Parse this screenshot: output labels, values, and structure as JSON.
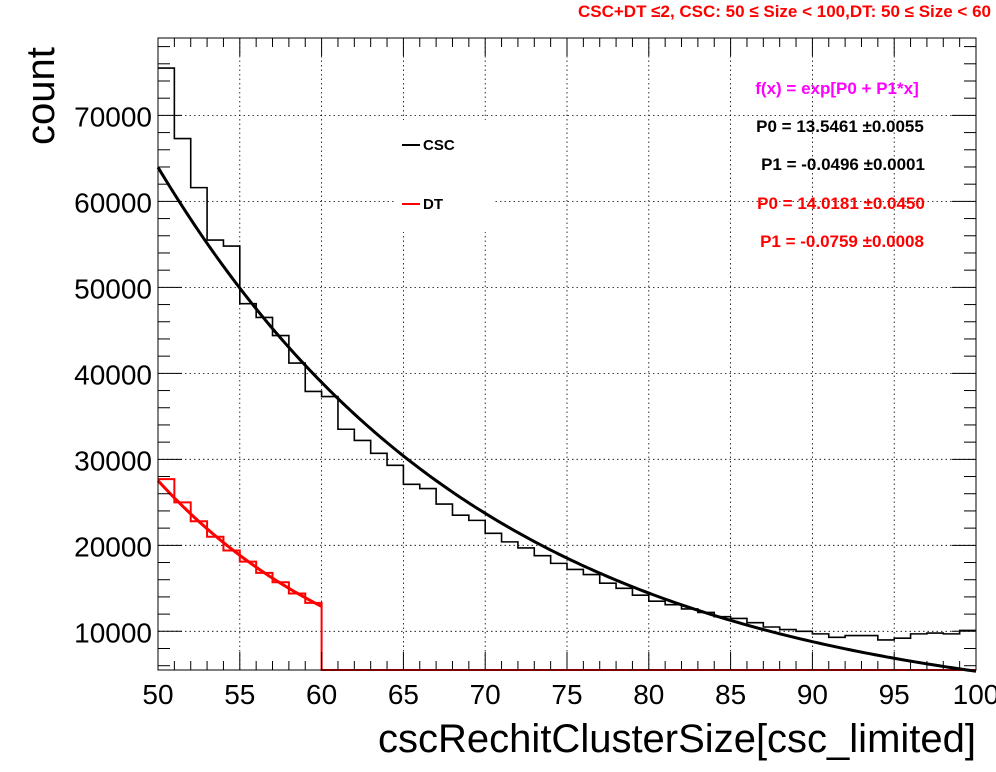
{
  "chart_data": {
    "type": "line",
    "title": "CSC+DT ≤2, CSC: 50  ≤ Size < 100,DT: 50   ≤ Size < 60",
    "xlabel": "cscRechitClusterSize[csc_limited]",
    "ylabel": "count",
    "xlim": [
      50,
      100
    ],
    "ylim": [
      5500,
      79000
    ],
    "x_ticks": [
      50,
      55,
      60,
      65,
      70,
      75,
      80,
      85,
      90,
      95,
      100
    ],
    "y_ticks": [
      10000,
      20000,
      30000,
      40000,
      50000,
      60000,
      70000
    ],
    "grid": true,
    "legend_position": "top-center",
    "colors": {
      "csc": "#000000",
      "dt": "#ff0000",
      "formula": "#ff00ff"
    },
    "series": [
      {
        "name": "CSC",
        "kind": "histogram",
        "bin_width": 1,
        "bin_edges_start": 50,
        "values": [
          75500,
          67300,
          61600,
          55500,
          54800,
          48100,
          46500,
          44400,
          41200,
          37900,
          37300,
          33500,
          32200,
          30700,
          29300,
          27100,
          26600,
          24800,
          23500,
          22900,
          21400,
          20400,
          19700,
          18800,
          17900,
          17200,
          16600,
          15600,
          15000,
          14200,
          13500,
          13100,
          12600,
          12200,
          11700,
          11500,
          11000,
          10500,
          10200,
          10000,
          9700,
          9300,
          9500,
          9500,
          9000,
          9200,
          9700,
          9800,
          9700,
          10100
        ]
      },
      {
        "name": "DT",
        "kind": "histogram",
        "bin_width": 1,
        "bin_edges_start": 50,
        "values": [
          27700,
          25000,
          22800,
          21000,
          19400,
          18100,
          16800,
          15700,
          14400,
          13300
        ]
      }
    ],
    "fits": [
      {
        "series": "CSC",
        "formula": "exp[P0 + P1*x]",
        "P0": 13.5461,
        "P1": -0.0496,
        "x_range": [
          50,
          100
        ],
        "color": "#000000"
      },
      {
        "series": "DT",
        "formula": "exp[P0 + P1*x]",
        "P0": 14.0181,
        "P1": -0.0759,
        "x_range": [
          50,
          60
        ],
        "color": "#ff0000"
      }
    ],
    "legend": [
      {
        "label": "CSC",
        "color": "#000000"
      },
      {
        "label": "DT",
        "color": "#ff0000"
      }
    ],
    "annotations": {
      "formula": "f(x) = exp[P0 + P1*x]",
      "csc_p0": "P0 = 13.5461 ±0.0055",
      "csc_p1": "P1 = -0.0496 ±0.0001",
      "dt_p0": "P0 = 14.0181 ±0.0450",
      "dt_p1": "P1 = -0.0759 ±0.0008"
    }
  }
}
